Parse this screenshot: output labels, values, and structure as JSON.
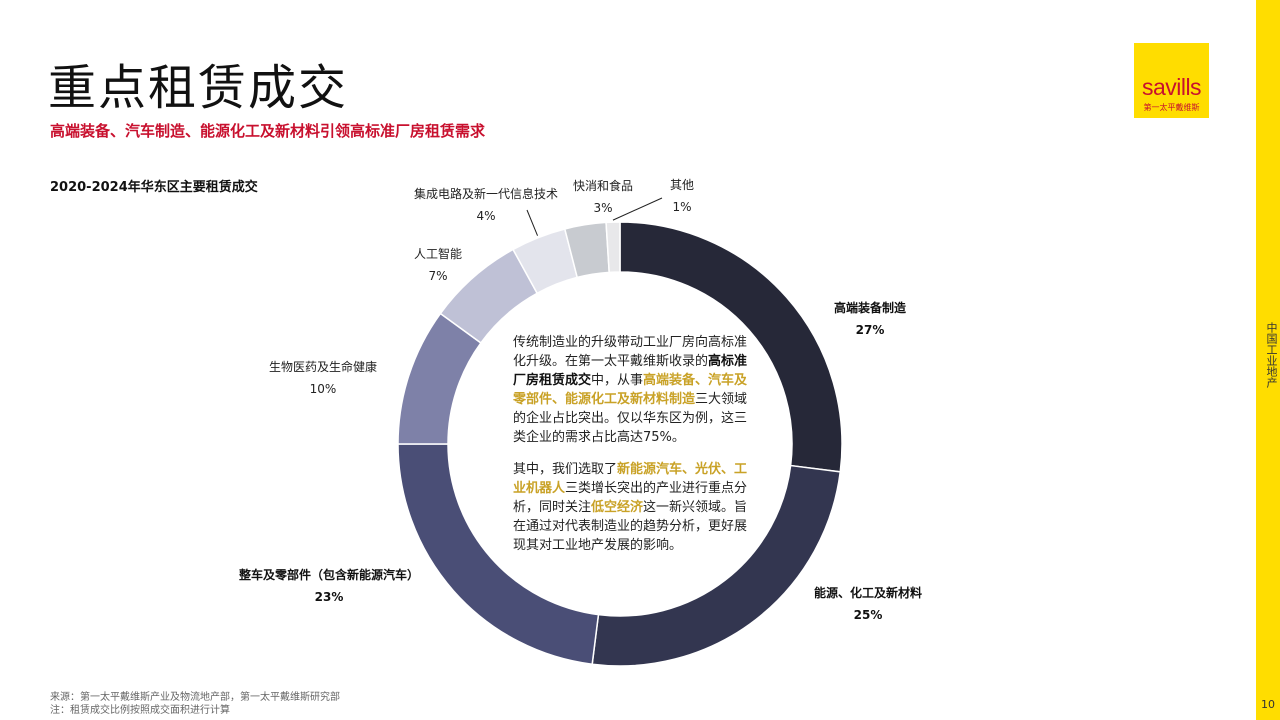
{
  "title": "重点租赁成交",
  "subtitle": "高端装备、汽车制造、能源化工及新材料引领高标准厂房租赁需求",
  "brand": {
    "name": "savills",
    "sub": "第一太平戴维斯",
    "color": "#ffdd00",
    "text_color": "#c8102e"
  },
  "side_label": "中国工业地产",
  "page_number": "10",
  "chart_data": {
    "type": "pie",
    "title": "2020-2024年华东区主要租赁成交",
    "donut": true,
    "unit": "%",
    "slices": [
      {
        "name": "高端装备制造",
        "value": 27,
        "label": "27%",
        "color": "#262838"
      },
      {
        "name": "能源、化工及新材料",
        "value": 25,
        "label": "25%",
        "color": "#333650"
      },
      {
        "name": "整车及零部件（包含新能源汽车）",
        "value": 23,
        "label": "23%",
        "color": "#4a4e76"
      },
      {
        "name": "生物医药及生命健康",
        "value": 10,
        "label": "10%",
        "color": "#7e81a8"
      },
      {
        "name": "人工智能",
        "value": 7,
        "label": "7%",
        "color": "#bfc1d6"
      },
      {
        "name": "集成电路及新一代信息技术",
        "value": 4,
        "label": "4%",
        "color": "#e3e4ec"
      },
      {
        "name": "快消和食品",
        "value": 3,
        "label": "3%",
        "color": "#c8cbd0"
      },
      {
        "name": "其他",
        "value": 1,
        "label": "1%",
        "color": "#e8e8ea"
      }
    ]
  },
  "center_text": {
    "para1": [
      {
        "text": "传统制造业的升级带动工业厂房向高标准化升级。在第一太平戴维斯收录的",
        "style": "normal"
      },
      {
        "text": "高标准厂房租赁成交",
        "style": "b"
      },
      {
        "text": "中，从事",
        "style": "normal"
      },
      {
        "text": "高端装备、汽车及零部件、能源化工及新材料制造",
        "style": "gold"
      },
      {
        "text": "三大领域的企业占比突出。仅以华东区为例，这三类企业的需求占比高达75%。",
        "style": "normal"
      }
    ],
    "para2": [
      {
        "text": "其中，我们选取了",
        "style": "normal"
      },
      {
        "text": "新能源汽车、光伏、工业机器人",
        "style": "gold"
      },
      {
        "text": "三类增长突出的产业进行重点分析，同时关注",
        "style": "normal"
      },
      {
        "text": "低空经济",
        "style": "gold"
      },
      {
        "text": "这一新兴领域。旨在通过对代表制造业的趋势分析，更好展现其对工业地产发展的影响。",
        "style": "normal"
      }
    ]
  },
  "footer": {
    "source": "来源：第一太平戴维斯产业及物流地产部，第一太平戴维斯研究部",
    "note": "注：租赁成交比例按照成交面积进行计算"
  }
}
